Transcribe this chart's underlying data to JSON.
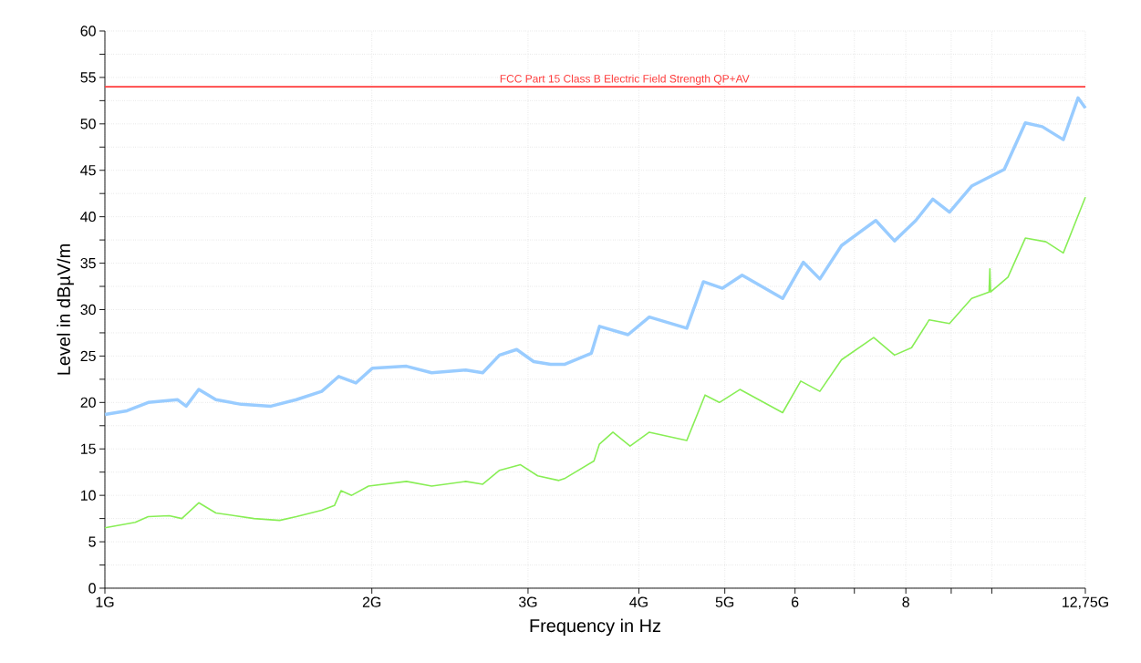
{
  "chart_data": {
    "type": "line",
    "xlabel": "Frequency in Hz",
    "ylabel": "Level in dBµV/m",
    "log": "x",
    "grid": true,
    "xlim": [
      1,
      12.75
    ],
    "ylim": [
      0,
      60
    ],
    "xticks": [
      {
        "value": 1,
        "label": "1G"
      },
      {
        "value": 2,
        "label": "2G"
      },
      {
        "value": 3,
        "label": "3G"
      },
      {
        "value": 4,
        "label": "4G"
      },
      {
        "value": 5,
        "label": "5G"
      },
      6,
      {
        "value": 7,
        "label": null
      },
      8,
      {
        "value": 9,
        "label": null
      },
      {
        "value": 10,
        "label": null
      },
      {
        "value": 12.75,
        "label": "12,75G"
      }
    ],
    "yticks": [
      0,
      {
        "value": 2.5,
        "label": null
      },
      5,
      {
        "value": 7.5,
        "label": null
      },
      10,
      {
        "value": 12.5,
        "label": null
      },
      15,
      {
        "value": 17.5,
        "label": null
      },
      20,
      {
        "value": 22.5,
        "label": null
      },
      25,
      {
        "value": 27.5,
        "label": null
      },
      30,
      {
        "value": 32.5,
        "label": null
      },
      35,
      {
        "value": 37.5,
        "label": null
      },
      40,
      {
        "value": 42.5,
        "label": null
      },
      45,
      {
        "value": 47.5,
        "label": null
      },
      50,
      {
        "value": 52.5,
        "label": null
      },
      55,
      {
        "value": 57.5,
        "label": null
      },
      60
    ],
    "ref_lines": [
      {
        "axis": "y",
        "value": 54,
        "label": "FCC Part 15 Class B Electric Field Strength QP+AV",
        "color": "#ff3b3b"
      }
    ],
    "series": [
      {
        "color": "#99ccff",
        "x": [
          1.0,
          1.059,
          1.119,
          1.208,
          1.235,
          1.276,
          1.334,
          1.425,
          1.539,
          1.644,
          1.756,
          1.835,
          1.919,
          2.003,
          2.188,
          2.336,
          2.552,
          2.667,
          2.786,
          2.913,
          3.044,
          3.181,
          3.297,
          3.536,
          3.612,
          3.89,
          4.11,
          4.53,
          4.73,
          4.97,
          5.23,
          5.81,
          6.13,
          6.4,
          6.77,
          7.4,
          7.77,
          8.21,
          8.58,
          8.96,
          9.49,
          10.33,
          10.91,
          11.4,
          12.04,
          12.51,
          12.75
        ],
        "values": [
          18.7,
          19.1,
          20.0,
          20.3,
          19.6,
          21.4,
          20.3,
          19.8,
          19.6,
          20.3,
          21.2,
          22.8,
          22.1,
          23.7,
          23.9,
          23.2,
          23.5,
          23.2,
          25.1,
          25.7,
          24.4,
          24.1,
          24.1,
          25.3,
          28.2,
          27.3,
          29.2,
          28.0,
          33.0,
          32.3,
          33.7,
          31.2,
          35.1,
          33.3,
          36.9,
          39.6,
          37.4,
          39.6,
          41.9,
          40.5,
          43.3,
          45.1,
          50.1,
          49.7,
          48.3,
          52.8,
          51.7
        ]
      },
      {
        "color": "#88ee55",
        "x": [
          1.0,
          1.082,
          1.119,
          1.182,
          1.221,
          1.276,
          1.334,
          1.473,
          1.574,
          1.644,
          1.756,
          1.815,
          1.846,
          1.898,
          1.983,
          2.188,
          2.336,
          2.552,
          2.667,
          2.786,
          2.942,
          3.076,
          3.25,
          3.297,
          3.56,
          3.61,
          3.74,
          3.91,
          4.11,
          4.53,
          4.75,
          4.93,
          5.2,
          5.81,
          6.09,
          6.4,
          6.77,
          7.36,
          7.77,
          8.12,
          8.5,
          8.96,
          9.49,
          9.93,
          9.95,
          9.97,
          10.43,
          10.91,
          11.51,
          12.04,
          12.75
        ],
        "values": [
          6.5,
          7.1,
          7.7,
          7.8,
          7.5,
          9.2,
          8.1,
          7.5,
          7.3,
          7.7,
          8.4,
          8.9,
          10.5,
          10.0,
          11.0,
          11.5,
          11.0,
          11.5,
          11.2,
          12.7,
          13.3,
          12.1,
          11.6,
          11.8,
          13.7,
          15.5,
          16.8,
          15.3,
          16.8,
          15.9,
          20.8,
          20.0,
          21.4,
          18.9,
          22.3,
          21.2,
          24.6,
          27.0,
          25.1,
          25.9,
          28.9,
          28.5,
          31.2,
          31.9,
          34.4,
          31.9,
          33.5,
          37.7,
          37.3,
          36.1,
          42.1
        ]
      }
    ]
  }
}
